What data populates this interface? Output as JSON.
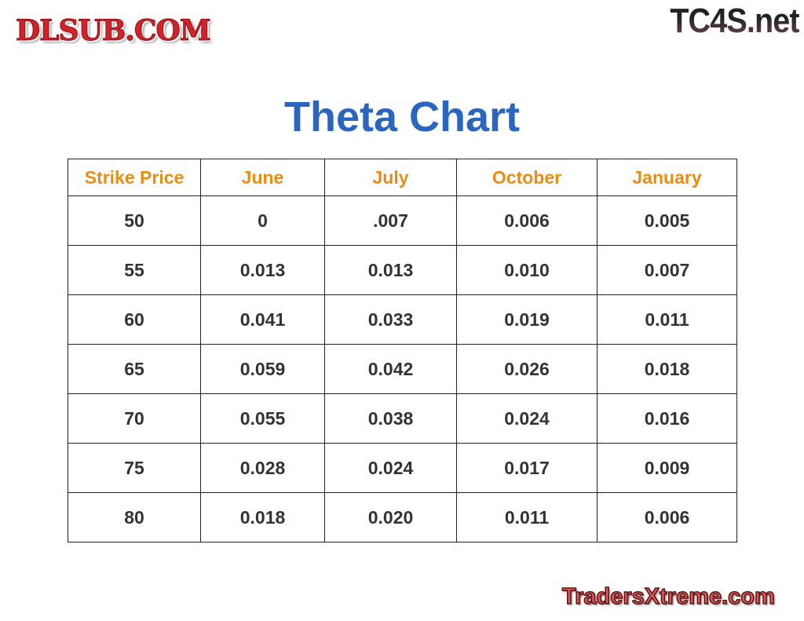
{
  "logos": {
    "top_right": "TC4S.net",
    "center_watermark": "DLSUB.COM",
    "bottom_right": "TradersXtreme.com"
  },
  "title": "Theta Chart",
  "colors": {
    "title": "#2a66bf",
    "header": "#ea8c10",
    "cell_text": "#333333"
  },
  "table": {
    "headers": [
      "Strike Price",
      "June",
      "July",
      "October",
      "January"
    ],
    "rows": [
      [
        "50",
        "0",
        ".007",
        "0.006",
        "0.005"
      ],
      [
        "55",
        "0.013",
        "0.013",
        "0.010",
        "0.007"
      ],
      [
        "60",
        "0.041",
        "0.033",
        "0.019",
        "0.011"
      ],
      [
        "65",
        "0.059",
        "0.042",
        "0.026",
        "0.018"
      ],
      [
        "70",
        "0.055",
        "0.038",
        "0.024",
        "0.016"
      ],
      [
        "75",
        "0.028",
        "0.024",
        "0.017",
        "0.009"
      ],
      [
        "80",
        "0.018",
        "0.020",
        "0.011",
        "0.006"
      ]
    ]
  }
}
